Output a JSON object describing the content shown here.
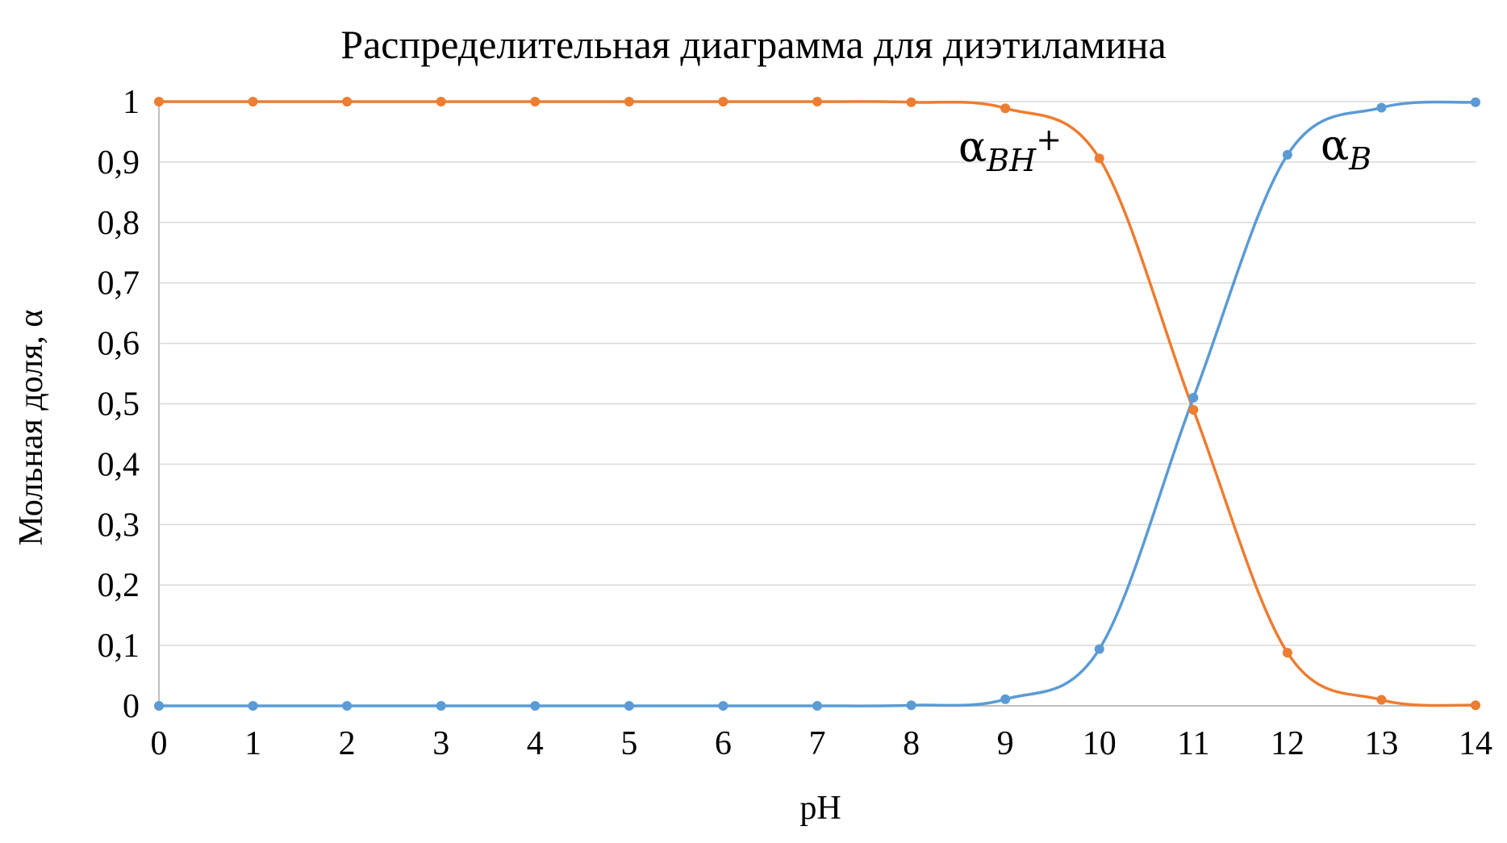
{
  "chart_data": {
    "type": "line",
    "title": "Распределительная диаграмма для диэтиламина",
    "xlabel": "pH",
    "ylabel": "Мольная доля, α",
    "x": [
      0,
      1,
      2,
      3,
      4,
      5,
      6,
      7,
      8,
      9,
      10,
      11,
      12,
      13,
      14
    ],
    "xlim": [
      0,
      14
    ],
    "ylim": [
      0,
      1
    ],
    "x_ticks": [
      "0",
      "1",
      "2",
      "3",
      "4",
      "5",
      "6",
      "7",
      "8",
      "9",
      "10",
      "11",
      "12",
      "13",
      "14"
    ],
    "y_ticks": [
      "0",
      "0,1",
      "0,2",
      "0,3",
      "0,4",
      "0,5",
      "0,6",
      "0,7",
      "0,8",
      "0,9",
      "1"
    ],
    "grid": true,
    "smooth": true,
    "series": [
      {
        "key": "BH",
        "label_main": "α",
        "label_sub": "BH",
        "label_sup": "+",
        "color": "#ED7D31",
        "values": [
          1,
          1,
          1,
          1,
          1,
          1,
          1,
          1,
          0.999,
          0.989,
          0.906,
          0.49,
          0.088,
          0.01,
          0.001
        ]
      },
      {
        "key": "B",
        "label_main": "α",
        "label_sub": "B",
        "label_sup": "",
        "color": "#5B9BD5",
        "values": [
          0,
          0,
          0,
          0,
          0,
          0,
          0,
          0,
          0.001,
          0.011,
          0.094,
          0.51,
          0.912,
          0.99,
          0.999
        ]
      }
    ]
  }
}
